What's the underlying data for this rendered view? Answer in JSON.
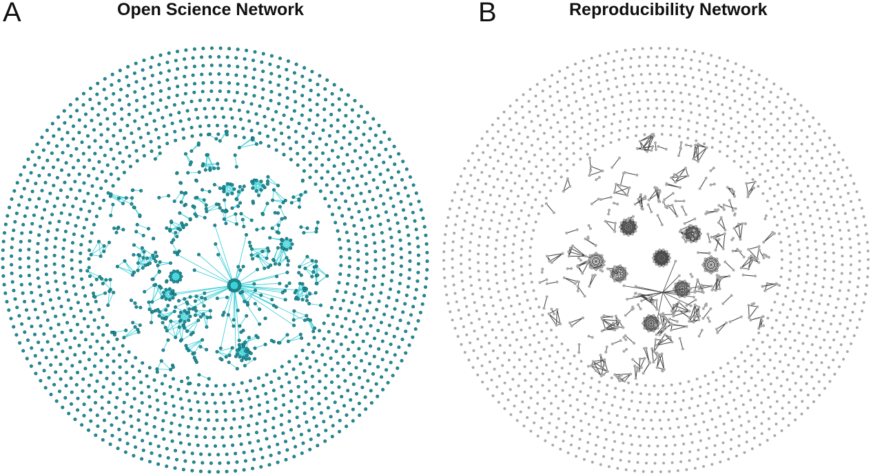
{
  "panels": [
    {
      "letter": "A",
      "title": "Open Science Network",
      "node_color": "#1f8f98",
      "node_stroke": "#0f5f66",
      "edge_color": "#3fd0d8"
    },
    {
      "letter": "B",
      "title": "Reproducibility Network",
      "node_color": "#a9a9a9",
      "node_stroke": "#a9a9a9",
      "edge_color": "#4a4a4a"
    }
  ]
}
